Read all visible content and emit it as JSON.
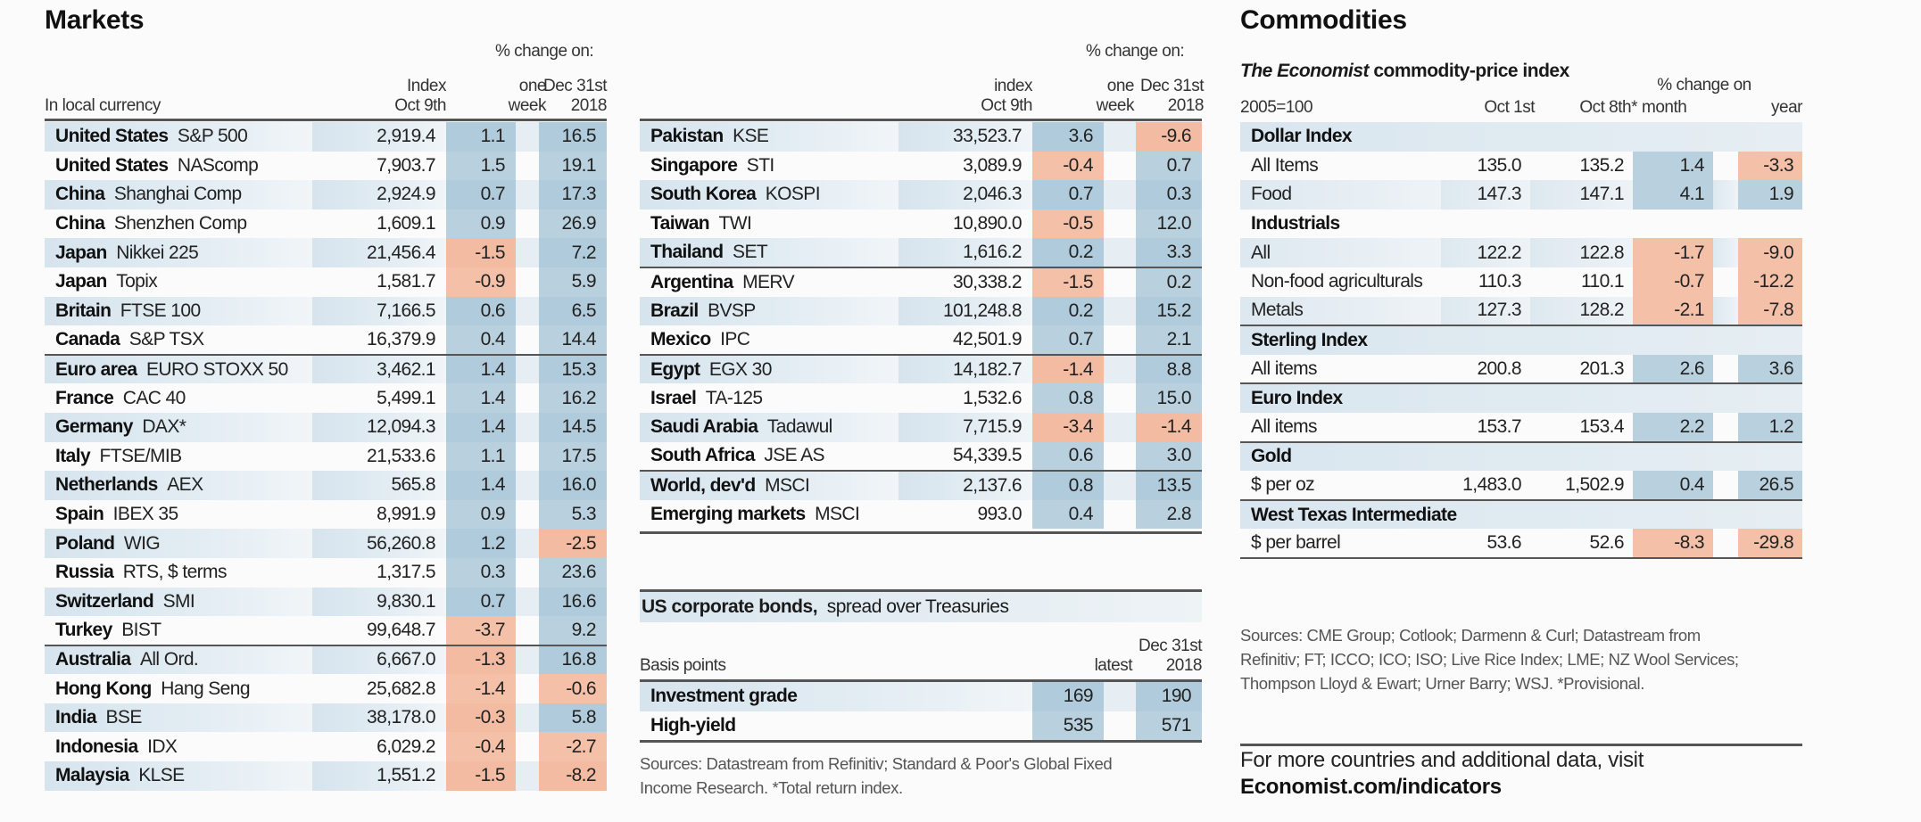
{
  "markets": {
    "title": "Markets",
    "pct_change_label": "% change on:",
    "currency_label": "In local currency",
    "col_index": [
      "Index",
      "Oct 9th"
    ],
    "col_week": [
      "one",
      "week"
    ],
    "col_dec": [
      "Dec 31st",
      "2018"
    ],
    "rows": [
      {
        "country": "United States",
        "index_name": "S&P 500",
        "value": "2,919.4",
        "week": "1.1",
        "dec": "16.5"
      },
      {
        "country": "United States",
        "index_name": "NAScomp",
        "value": "7,903.7",
        "week": "1.5",
        "dec": "19.1"
      },
      {
        "country": "China",
        "index_name": "Shanghai Comp",
        "value": "2,924.9",
        "week": "0.7",
        "dec": "17.3"
      },
      {
        "country": "China",
        "index_name": "Shenzhen Comp",
        "value": "1,609.1",
        "week": "0.9",
        "dec": "26.9"
      },
      {
        "country": "Japan",
        "index_name": "Nikkei 225",
        "value": "21,456.4",
        "week": "-1.5",
        "dec": "7.2"
      },
      {
        "country": "Japan",
        "index_name": "Topix",
        "value": "1,581.7",
        "week": "-0.9",
        "dec": "5.9"
      },
      {
        "country": "Britain",
        "index_name": "FTSE 100",
        "value": "7,166.5",
        "week": "0.6",
        "dec": "6.5"
      },
      {
        "country": "Canada",
        "index_name": "S&P TSX",
        "value": "16,379.9",
        "week": "0.4",
        "dec": "14.4"
      },
      {
        "country": "Euro area",
        "index_name": "EURO STOXX 50",
        "value": "3,462.1",
        "week": "1.4",
        "dec": "15.3"
      },
      {
        "country": "France",
        "index_name": "CAC 40",
        "value": "5,499.1",
        "week": "1.4",
        "dec": "16.2"
      },
      {
        "country": "Germany",
        "index_name": "DAX*",
        "value": "12,094.3",
        "week": "1.4",
        "dec": "14.5"
      },
      {
        "country": "Italy",
        "index_name": "FTSE/MIB",
        "value": "21,533.6",
        "week": "1.1",
        "dec": "17.5"
      },
      {
        "country": "Netherlands",
        "index_name": "AEX",
        "value": "565.8",
        "week": "1.4",
        "dec": "16.0"
      },
      {
        "country": "Spain",
        "index_name": "IBEX 35",
        "value": "8,991.9",
        "week": "0.9",
        "dec": "5.3"
      },
      {
        "country": "Poland",
        "index_name": "WIG",
        "value": "56,260.8",
        "week": "1.2",
        "dec": "-2.5"
      },
      {
        "country": "Russia",
        "index_name": "RTS, $ terms",
        "value": "1,317.5",
        "week": "0.3",
        "dec": "23.6"
      },
      {
        "country": "Switzerland",
        "index_name": "SMI",
        "value": "9,830.1",
        "week": "0.7",
        "dec": "16.6"
      },
      {
        "country": "Turkey",
        "index_name": "BIST",
        "value": "99,648.7",
        "week": "-3.7",
        "dec": "9.2"
      },
      {
        "country": "Australia",
        "index_name": "All Ord.",
        "value": "6,667.0",
        "week": "-1.3",
        "dec": "16.8"
      },
      {
        "country": "Hong Kong",
        "index_name": "Hang Seng",
        "value": "25,682.8",
        "week": "-1.4",
        "dec": "-0.6"
      },
      {
        "country": "India",
        "index_name": "BSE",
        "value": "38,178.0",
        "week": "-0.3",
        "dec": "5.8"
      },
      {
        "country": "Indonesia",
        "index_name": "IDX",
        "value": "6,029.2",
        "week": "-0.4",
        "dec": "-2.7"
      },
      {
        "country": "Malaysia",
        "index_name": "KLSE",
        "value": "1,551.2",
        "week": "-1.5",
        "dec": "-8.2"
      }
    ]
  },
  "markets2": {
    "pct_change_label": "% change on:",
    "col_index": [
      "index",
      "Oct 9th"
    ],
    "col_week": [
      "one",
      "week"
    ],
    "col_dec": [
      "Dec 31st",
      "2018"
    ],
    "rows": [
      {
        "country": "Pakistan",
        "index_name": "KSE",
        "value": "33,523.7",
        "week": "3.6",
        "dec": "-9.6"
      },
      {
        "country": "Singapore",
        "index_name": "STI",
        "value": "3,089.9",
        "week": "-0.4",
        "dec": "0.7"
      },
      {
        "country": "South Korea",
        "index_name": "KOSPI",
        "value": "2,046.3",
        "week": "0.7",
        "dec": "0.3"
      },
      {
        "country": "Taiwan",
        "index_name": "TWI",
        "value": "10,890.0",
        "week": "-0.5",
        "dec": "12.0"
      },
      {
        "country": "Thailand",
        "index_name": "SET",
        "value": "1,616.2",
        "week": "0.2",
        "dec": "3.3"
      },
      {
        "country": "Argentina",
        "index_name": "MERV",
        "value": "30,338.2",
        "week": "-1.5",
        "dec": "0.2"
      },
      {
        "country": "Brazil",
        "index_name": "BVSP",
        "value": "101,248.8",
        "week": "0.2",
        "dec": "15.2"
      },
      {
        "country": "Mexico",
        "index_name": "IPC",
        "value": "42,501.9",
        "week": "0.7",
        "dec": "2.1"
      },
      {
        "country": "Egypt",
        "index_name": "EGX 30",
        "value": "14,182.7",
        "week": "-1.4",
        "dec": "8.8"
      },
      {
        "country": "Israel",
        "index_name": "TA-125",
        "value": "1,532.6",
        "week": "0.8",
        "dec": "15.0"
      },
      {
        "country": "Saudi Arabia",
        "index_name": "Tadawul",
        "value": "7,715.9",
        "week": "-3.4",
        "dec": "-1.4"
      },
      {
        "country": "South Africa",
        "index_name": "JSE AS",
        "value": "54,339.5",
        "week": "0.6",
        "dec": "3.0"
      },
      {
        "country": "World, dev'd",
        "index_name": "MSCI",
        "value": "2,137.6",
        "week": "0.8",
        "dec": "13.5"
      },
      {
        "country": "Emerging markets",
        "index_name": "MSCI",
        "value": "993.0",
        "week": "0.4",
        "dec": "2.8"
      }
    ]
  },
  "bonds": {
    "title_bold": "US corporate bonds,",
    "title_rest": "spread over Treasuries",
    "unit_label": "Basis points",
    "col_latest": "latest",
    "col_dec": [
      "Dec 31st",
      "2018"
    ],
    "rows": [
      {
        "label": "Investment grade",
        "latest": "169",
        "dec": "190"
      },
      {
        "label": "High-yield",
        "latest": "535",
        "dec": "571"
      }
    ],
    "sources": [
      "Sources: Datastream from Refinitiv; Standard & Poor's Global Fixed",
      "Income Research.  *Total return index."
    ]
  },
  "commodities": {
    "title": "Commodities",
    "subtitle_italic": "The Economist",
    "subtitle_rest": "commodity-price index",
    "base_label": "2005=100",
    "col_oct1": "Oct 1st",
    "col_oct8": "Oct 8th*",
    "pct_change_label": "% change on",
    "col_month": "month",
    "col_year": "year",
    "groups": [
      {
        "name": "Dollar Index",
        "rows": [
          {
            "label": "All Items",
            "oct1": "135.0",
            "oct8": "135.2",
            "month": "1.4",
            "year": "-3.3"
          },
          {
            "label": "Food",
            "oct1": "147.3",
            "oct8": "147.1",
            "month": "4.1",
            "year": "1.9"
          }
        ]
      },
      {
        "name": "Industrials",
        "rows": [
          {
            "label": "All",
            "oct1": "122.2",
            "oct8": "122.8",
            "month": "-1.7",
            "year": "-9.0"
          },
          {
            "label": "Non-food agriculturals",
            "oct1": "110.3",
            "oct8": "110.1",
            "month": "-0.7",
            "year": "-12.2"
          },
          {
            "label": "Metals",
            "oct1": "127.3",
            "oct8": "128.2",
            "month": "-2.1",
            "year": "-7.8"
          }
        ]
      },
      {
        "name": "Sterling Index",
        "rows": [
          {
            "label": "All items",
            "oct1": "200.8",
            "oct8": "201.3",
            "month": "2.6",
            "year": "3.6"
          }
        ]
      },
      {
        "name": "Euro Index",
        "rows": [
          {
            "label": "All items",
            "oct1": "153.7",
            "oct8": "153.4",
            "month": "2.2",
            "year": "1.2"
          }
        ]
      },
      {
        "name": "Gold",
        "rows": [
          {
            "label": "$ per oz",
            "oct1": "1,483.0",
            "oct8": "1,502.9",
            "month": "0.4",
            "year": "26.5"
          }
        ]
      },
      {
        "name": "West Texas Intermediate",
        "rows": [
          {
            "label": "$ per barrel",
            "oct1": "53.6",
            "oct8": "52.6",
            "month": "-8.3",
            "year": "-29.8"
          }
        ]
      }
    ],
    "sources": [
      "Sources: CME Group; Cotlook; Darmenn & Curl; Datastream from",
      "Refinitiv; FT; ICCO; ICO; ISO; Live Rice Index; LME; NZ Wool Services;",
      "Thompson Lloyd & Ewart; Urner Barry; WSJ.  *Provisional."
    ],
    "visit_text": "For more countries and additional data, visit",
    "visit_link": "Economist.com/indicators"
  },
  "colors": {
    "positive_cell": "#b9d1df",
    "negative_cell": "#f4c0a8",
    "row_shade": "#dbe7ef",
    "rule": "#555555"
  }
}
